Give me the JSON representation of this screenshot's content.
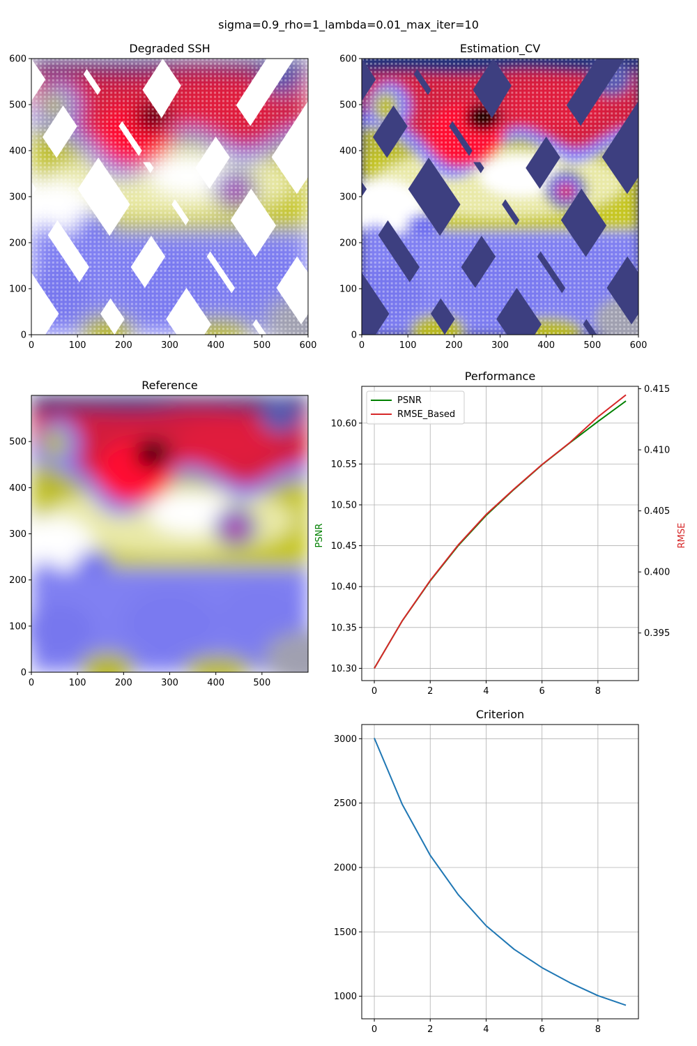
{
  "suptitle": "sigma=0.9_rho=1_lambda=0.01_max_iter=10",
  "colors": {
    "psnr": "#008000",
    "rmse": "#d62728",
    "criterion": "#1f77b4",
    "grid": "#b0b0b0",
    "colormap": [
      "#1a2f7a",
      "#7b7bff",
      "#bcbc10",
      "#ffffff",
      "#ff1030",
      "#000000"
    ]
  },
  "chart_data": [
    {
      "type": "heatmap",
      "title": "Degraded SSH",
      "xlim": [
        0,
        600
      ],
      "ylim": [
        0,
        600
      ],
      "xticks": [
        0,
        100,
        200,
        300,
        400,
        500,
        600
      ],
      "yticks": [
        0,
        100,
        200,
        300,
        400,
        500,
        600
      ],
      "xtick_labels": [
        "0",
        "100",
        "200",
        "300",
        "400",
        "500",
        "600"
      ],
      "ytick_labels": [
        "0",
        "100",
        "200",
        "300",
        "400",
        "500",
        "600"
      ]
    },
    {
      "type": "heatmap",
      "title": "Estimation_CV",
      "xlim": [
        0,
        600
      ],
      "ylim": [
        0,
        600
      ],
      "xticks": [
        0,
        100,
        200,
        300,
        400,
        500,
        600
      ],
      "yticks": [
        0,
        100,
        200,
        300,
        400,
        500,
        600
      ],
      "xtick_labels": [
        "0",
        "100",
        "200",
        "300",
        "400",
        "500",
        "600"
      ],
      "ytick_labels": [
        "0",
        "100",
        "200",
        "300",
        "400",
        "500",
        "600"
      ]
    },
    {
      "type": "heatmap",
      "title": "Reference",
      "xlim": [
        0,
        600
      ],
      "ylim": [
        0,
        600
      ],
      "xticks": [
        0,
        100,
        200,
        300,
        400,
        500
      ],
      "yticks": [
        0,
        100,
        200,
        300,
        400,
        500
      ],
      "xtick_labels": [
        "0",
        "100",
        "200",
        "300",
        "400",
        "500"
      ],
      "ytick_labels": [
        "0",
        "100",
        "200",
        "300",
        "400",
        "500"
      ]
    },
    {
      "type": "line",
      "title": "Performance",
      "x": [
        0,
        1,
        2,
        3,
        4,
        5,
        6,
        7,
        8,
        9
      ],
      "xlim": [
        -0.45,
        9.45
      ],
      "xticks": [
        0,
        2,
        4,
        6,
        8
      ],
      "xtick_labels": [
        "0",
        "2",
        "4",
        "6",
        "8"
      ],
      "ylabel": "PSNR",
      "ylim": [
        10.285,
        10.645
      ],
      "yticks": [
        10.3,
        10.35,
        10.4,
        10.45,
        10.5,
        10.55,
        10.6
      ],
      "ytick_labels": [
        "10.30",
        "10.35",
        "10.40",
        "10.45",
        "10.50",
        "10.55",
        "10.60"
      ],
      "y2label": "RMSE",
      "y2lim": [
        0.3911,
        0.4152
      ],
      "y2ticks": [
        0.395,
        0.4,
        0.405,
        0.41,
        0.415
      ],
      "y2tick_labels": [
        "0.395",
        "0.400",
        "0.405",
        "0.410",
        "0.415"
      ],
      "grid": true,
      "legend": "upper-left",
      "series": [
        {
          "name": "PSNR",
          "axis": "left",
          "values": [
            10.3,
            10.358,
            10.407,
            10.45,
            10.487,
            10.519,
            10.549,
            10.576,
            10.602,
            10.627
          ]
        },
        {
          "name": "RMSE_Based",
          "axis": "right",
          "values": [
            0.3921,
            0.396,
            0.3993,
            0.4022,
            0.4047,
            0.4068,
            0.4088,
            0.4106,
            0.4127,
            0.4145
          ]
        }
      ]
    },
    {
      "type": "line",
      "title": "Criterion",
      "x": [
        0,
        1,
        2,
        3,
        4,
        5,
        6,
        7,
        8,
        9
      ],
      "xlim": [
        -0.45,
        9.45
      ],
      "xticks": [
        0,
        2,
        4,
        6,
        8
      ],
      "xtick_labels": [
        "0",
        "2",
        "4",
        "6",
        "8"
      ],
      "ylim": [
        825,
        3110
      ],
      "yticks": [
        1000,
        1500,
        2000,
        2500,
        3000
      ],
      "ytick_labels": [
        "1000",
        "1500",
        "2000",
        "2500",
        "3000"
      ],
      "grid": true,
      "series": [
        {
          "values": [
            3005,
            2490,
            2095,
            1790,
            1548,
            1365,
            1222,
            1105,
            1005,
            930
          ]
        }
      ]
    }
  ]
}
